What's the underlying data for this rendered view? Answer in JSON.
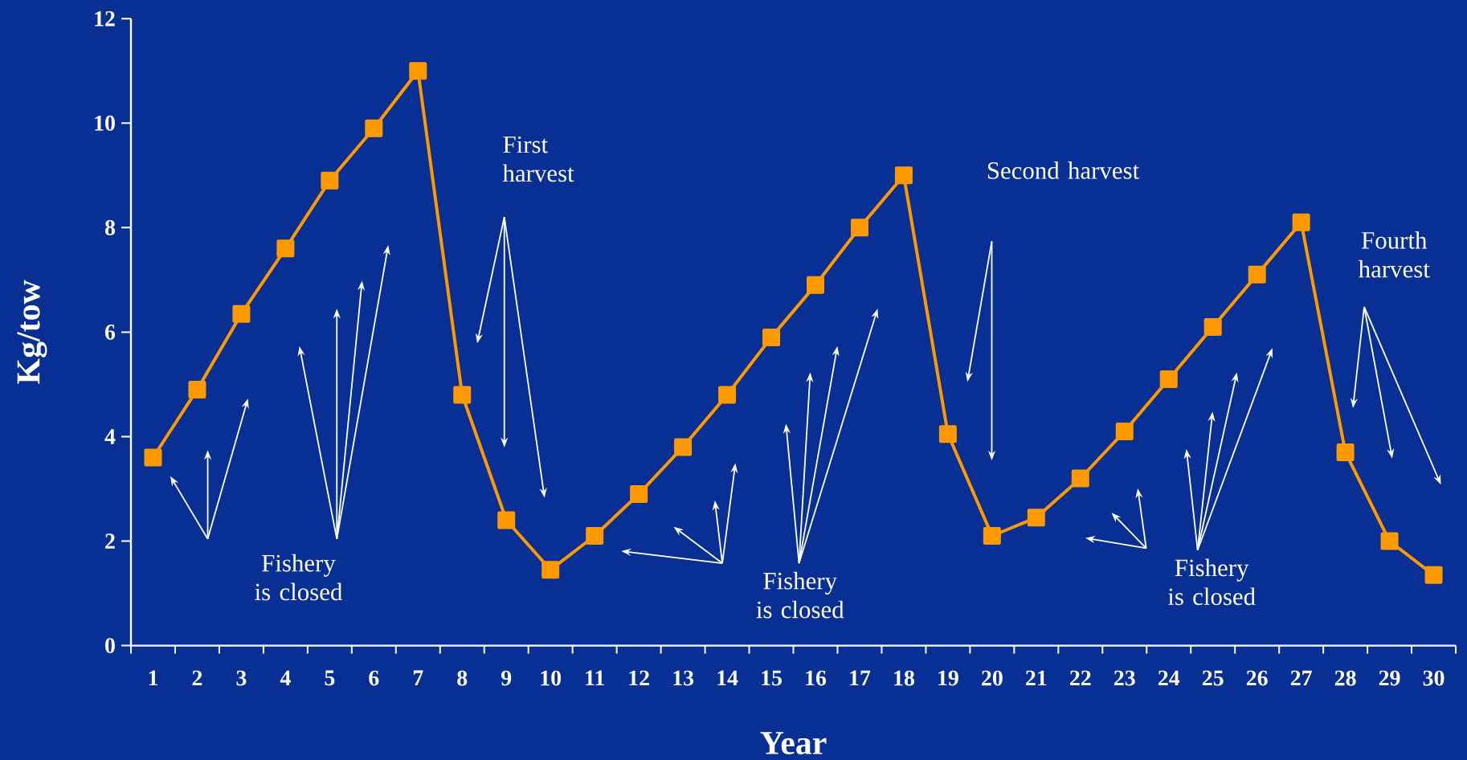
{
  "chart_data": {
    "type": "line",
    "xlabel": "Year",
    "ylabel": "Kg/tow",
    "categories": [
      "1",
      "2",
      "3",
      "4",
      "5",
      "6",
      "7",
      "8",
      "9",
      "10",
      "11",
      "12",
      "13",
      "14",
      "15",
      "16",
      "17",
      "18",
      "19",
      "20",
      "21",
      "22",
      "23",
      "24",
      "25",
      "26",
      "27",
      "28",
      "29",
      "30"
    ],
    "series": [
      {
        "color": "#ff9900",
        "values": [
          3.6,
          4.9,
          6.35,
          7.6,
          8.9,
          9.9,
          11,
          4.8,
          2.4,
          1.45,
          2.1,
          2.9,
          3.8,
          4.8,
          5.9,
          6.9,
          8,
          9,
          4.05,
          2.1,
          2.45,
          3.2,
          4.1,
          5.1,
          6.1,
          7.1,
          8.1,
          3.7,
          2,
          1.35
        ]
      }
    ],
    "marker": "square",
    "line_style": "solid",
    "grid": false,
    "ylim": [
      0,
      12
    ],
    "yticks": [
      0,
      2,
      4,
      6,
      8,
      10,
      12
    ],
    "annotations": [
      "First harvest",
      "Second harvest",
      "Fourth harvest",
      "Fishery is closed",
      "Fishery is closed",
      "Fishery is closed"
    ]
  }
}
